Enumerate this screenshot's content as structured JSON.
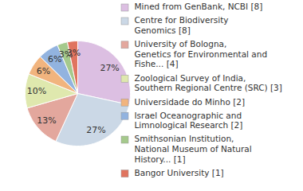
{
  "chart_data": {
    "type": "pie",
    "categories": [
      "Mined from GenBank, NCBI [8]",
      "Centre for Biodiversity\nGenomics [8]",
      "University of Bologna,\nGenetics for Environmental and\nFishe... [4]",
      "Zoological Survey of India,\nSouthern Regional Centre (SRC) [3]",
      "Universidade do Minho [2]",
      "Israel Oceanographic and\nLimnological Research [2]",
      "Smithsonian Institution,\nNational Museum of Natural\nHistory... [1]",
      "Bangor University [1]"
    ],
    "values": [
      27,
      27,
      13,
      10,
      6,
      6,
      3,
      3
    ],
    "value_labels": [
      "27%",
      "27%",
      "13%",
      "10%",
      "6%",
      "6%",
      "3%",
      "3%"
    ],
    "colors": [
      "#dcbfe2",
      "#cbd8e6",
      "#e3a79d",
      "#dfe8ae",
      "#f1b47e",
      "#92b3df",
      "#a5c98c",
      "#e0745f"
    ],
    "data_labels": true,
    "legend": "right"
  }
}
